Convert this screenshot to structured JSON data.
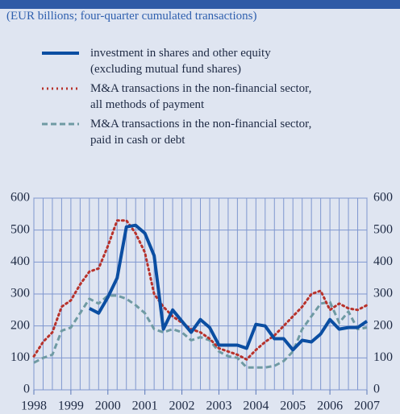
{
  "chart_data": {
    "type": "line",
    "subtitle": "(EUR billions; four-quarter cumulated transactions)",
    "x": [
      1998,
      1998.25,
      1998.5,
      1998.75,
      1999,
      1999.25,
      1999.5,
      1999.75,
      2000,
      2000.25,
      2000.5,
      2000.75,
      2001,
      2001.25,
      2001.5,
      2001.75,
      2002,
      2002.25,
      2002.5,
      2002.75,
      2003,
      2003.25,
      2003.5,
      2003.75,
      2004,
      2004.25,
      2004.5,
      2004.75,
      2005,
      2005.25,
      2005.5,
      2005.75,
      2006,
      2006.25,
      2006.5,
      2006.75,
      2007
    ],
    "series": [
      {
        "name": "investment in shares and other equity (excluding mutual fund shares)",
        "color": "#0b4ea2",
        "style": "solid",
        "values": [
          null,
          null,
          null,
          null,
          null,
          null,
          255,
          240,
          290,
          350,
          510,
          515,
          490,
          420,
          190,
          250,
          215,
          180,
          220,
          195,
          140,
          140,
          140,
          130,
          205,
          200,
          160,
          160,
          125,
          155,
          150,
          175,
          220,
          190,
          195,
          195,
          215
        ]
      },
      {
        "name": "M&A transactions in the non-financial sector, all methods of payment",
        "color": "#b8322b",
        "style": "dotted",
        "values": [
          105,
          150,
          180,
          260,
          280,
          330,
          370,
          380,
          450,
          530,
          530,
          490,
          430,
          300,
          260,
          230,
          210,
          190,
          180,
          160,
          130,
          120,
          110,
          95,
          125,
          150,
          170,
          200,
          230,
          260,
          300,
          310,
          250,
          270,
          255,
          250,
          265
        ]
      },
      {
        "name": "M&A transactions in the non-financial sector, paid in cash or debt",
        "color": "#6f9aa3",
        "style": "dashed",
        "values": [
          85,
          100,
          110,
          185,
          195,
          240,
          285,
          270,
          295,
          295,
          285,
          265,
          240,
          190,
          180,
          190,
          180,
          155,
          165,
          155,
          120,
          105,
          100,
          70,
          70,
          70,
          75,
          90,
          120,
          190,
          230,
          270,
          275,
          210,
          245,
          190,
          195
        ]
      }
    ],
    "xlim": [
      1998,
      2007
    ],
    "xticks": [
      1998,
      1999,
      2000,
      2001,
      2002,
      2003,
      2004,
      2005,
      2006,
      2007
    ],
    "ylim": [
      0,
      600
    ],
    "yticks": [
      0,
      100,
      200,
      300,
      400,
      500,
      600
    ],
    "grid": true
  }
}
